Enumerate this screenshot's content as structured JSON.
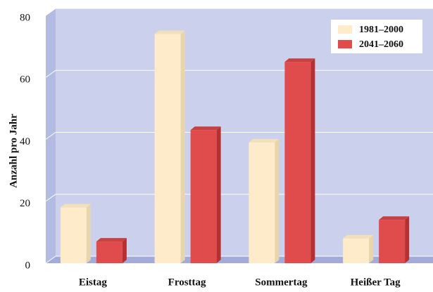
{
  "chart_data": {
    "type": "bar3d",
    "y_label": "Anzahl pro Jahr",
    "categories": [
      "Eistag",
      "Frosttag",
      "Sommertag",
      "Heißer Tag"
    ],
    "series": [
      {
        "name": "1981–2000",
        "color": "#fdebc9",
        "values": [
          18,
          74,
          39,
          8
        ]
      },
      {
        "name": "2041–2060",
        "color": "#e04b4b",
        "values": [
          7,
          43,
          65,
          14
        ]
      }
    ],
    "ylim": [
      0,
      80
    ],
    "yticks": [
      0,
      20,
      40,
      60,
      80
    ],
    "grid": true,
    "legend": "top-right"
  }
}
